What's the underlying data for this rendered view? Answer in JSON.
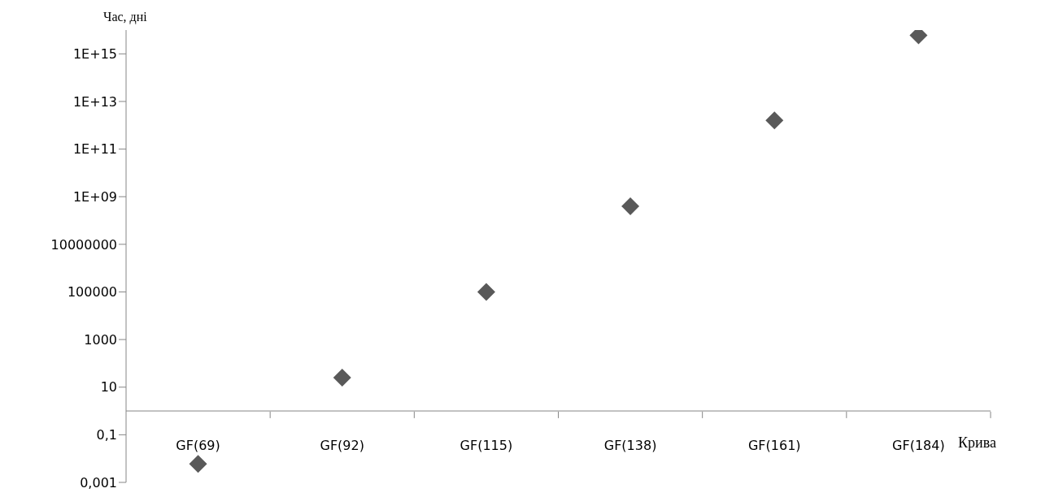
{
  "chart_data": {
    "type": "scatter",
    "xlabel": "Крива",
    "ylabel": "Час, дні",
    "categories": [
      "GF(69)",
      "GF(92)",
      "GF(115)",
      "GF(138)",
      "GF(161)",
      "GF(184)"
    ],
    "values": [
      0.006,
      25,
      100000,
      400000000,
      1600000000000,
      6000000000000000
    ],
    "color": "#595959",
    "marker": "diamond",
    "log": "y",
    "ylim": [
      0.001,
      1e+16
    ],
    "yticks": [
      {
        "value": 0.001,
        "label": "0,001"
      },
      {
        "value": 0.1,
        "label": "0,1"
      },
      10,
      1000,
      100000,
      10000000,
      {
        "value": 1000000000.0,
        "label": "1E+09"
      },
      {
        "value": 100000000000.0,
        "label": "1E+11"
      },
      {
        "value": 10000000000000.0,
        "label": "1E+13"
      },
      {
        "value": 1000000000000000.0,
        "label": "1E+15"
      }
    ]
  }
}
